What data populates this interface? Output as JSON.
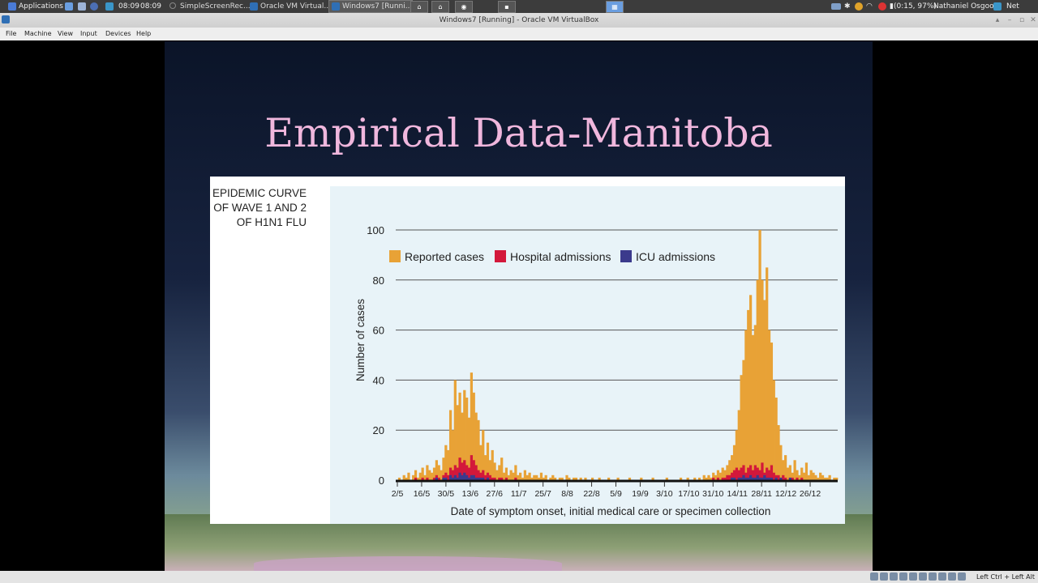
{
  "topbar": {
    "applications": "Applications",
    "clock": "08:09",
    "clock2": "08:09",
    "tasks": [
      "SimpleScreenRec...",
      "Oracle VM Virtual...",
      "Windows7 [Runni..."
    ],
    "battery": "(0:15, 97%)",
    "user": "Nathaniel Osgood",
    "network": "Net"
  },
  "window": {
    "title": "Windows7 [Running] - Oracle VM VirtualBox"
  },
  "menu": [
    "File",
    "Machine",
    "View",
    "Input",
    "Devices",
    "Help"
  ],
  "slide": {
    "title": "Empirical Data-Manitoba",
    "figure_title": [
      "EPIDEMIC CURVE",
      "OF WAVE 1 AND 2",
      "OF H1N1 FLU"
    ]
  },
  "chart_data": {
    "type": "bar",
    "ylabel": "Number of cases",
    "xlabel": "Date of symptom onset, initial medical care or specimen collection",
    "ylim": [
      0,
      100
    ],
    "yticks": [
      0,
      20,
      40,
      60,
      80,
      100
    ],
    "x_tick_labels": [
      "2/5",
      "16/5",
      "30/5",
      "13/6",
      "27/6",
      "11/7",
      "25/7",
      "8/8",
      "22/8",
      "5/9",
      "19/9",
      "3/10",
      "17/10",
      "31/10",
      "14/11",
      "28/11",
      "12/12",
      "26/12"
    ],
    "legend_placement": "top",
    "series": [
      {
        "name": "Reported cases",
        "color": "#e8a236"
      },
      {
        "name": "Hospital admissions",
        "color": "#d3183b"
      },
      {
        "name": "ICU admissions",
        "color": "#3b3a8c"
      }
    ],
    "reported_cases_daily": [
      0,
      1,
      0,
      2,
      1,
      3,
      0,
      2,
      4,
      1,
      3,
      5,
      2,
      6,
      4,
      3,
      5,
      8,
      6,
      4,
      9,
      14,
      12,
      28,
      20,
      40,
      30,
      35,
      27,
      36,
      33,
      25,
      43,
      35,
      27,
      24,
      14,
      20,
      10,
      15,
      8,
      12,
      7,
      4,
      6,
      9,
      3,
      5,
      2,
      4,
      3,
      6,
      2,
      3,
      1,
      4,
      2,
      3,
      1,
      2,
      2,
      1,
      3,
      1,
      2,
      0,
      1,
      2,
      1,
      0,
      1,
      1,
      0,
      2,
      1,
      0,
      1,
      1,
      0,
      1,
      0,
      1,
      0,
      0,
      1,
      0,
      0,
      1,
      0,
      0,
      0,
      1,
      0,
      0,
      0,
      1,
      0,
      0,
      0,
      0,
      1,
      0,
      0,
      0,
      0,
      1,
      0,
      0,
      0,
      0,
      1,
      0,
      0,
      0,
      0,
      0,
      1,
      0,
      0,
      0,
      0,
      0,
      1,
      0,
      0,
      1,
      0,
      0,
      1,
      0,
      1,
      0,
      2,
      1,
      2,
      1,
      3,
      2,
      4,
      3,
      5,
      4,
      6,
      8,
      10,
      14,
      20,
      28,
      42,
      48,
      60,
      68,
      74,
      58,
      62,
      80,
      100,
      80,
      72,
      85,
      60,
      55,
      40,
      33,
      22,
      14,
      8,
      10,
      5,
      6,
      3,
      8,
      4,
      2,
      5,
      3,
      7,
      2,
      4,
      3,
      2,
      1,
      3,
      2,
      1,
      1,
      2,
      0,
      1,
      1
    ],
    "hospital_admissions_daily": [
      0,
      0,
      0,
      0,
      0,
      0,
      0,
      0,
      1,
      0,
      0,
      1,
      0,
      1,
      0,
      0,
      1,
      2,
      1,
      0,
      2,
      3,
      2,
      5,
      4,
      6,
      5,
      9,
      7,
      8,
      6,
      5,
      10,
      8,
      6,
      4,
      3,
      4,
      2,
      3,
      2,
      1,
      1,
      0,
      1,
      1,
      0,
      1,
      0,
      0,
      0,
      1,
      0,
      0,
      0,
      0,
      0,
      0,
      0,
      0,
      0,
      0,
      0,
      0,
      0,
      0,
      0,
      0,
      0,
      0,
      0,
      0,
      0,
      0,
      0,
      0,
      0,
      0,
      0,
      0,
      0,
      0,
      0,
      0,
      0,
      0,
      0,
      0,
      0,
      0,
      0,
      0,
      0,
      0,
      0,
      0,
      0,
      0,
      0,
      0,
      0,
      0,
      0,
      0,
      0,
      0,
      0,
      0,
      0,
      0,
      0,
      0,
      0,
      0,
      0,
      0,
      0,
      0,
      0,
      0,
      0,
      0,
      0,
      0,
      0,
      0,
      0,
      0,
      0,
      0,
      0,
      0,
      0,
      0,
      0,
      0,
      1,
      0,
      1,
      0,
      1,
      1,
      2,
      2,
      3,
      4,
      5,
      4,
      5,
      6,
      3,
      5,
      6,
      4,
      6,
      5,
      4,
      7,
      3,
      5,
      4,
      6,
      3,
      2,
      2,
      1,
      2,
      1,
      0,
      1,
      1,
      0,
      1,
      0,
      1,
      0,
      0,
      0,
      0,
      0,
      0,
      0,
      0,
      0,
      0,
      0,
      0,
      0
    ],
    "icu_admissions_daily": [
      0,
      0,
      0,
      0,
      0,
      0,
      0,
      0,
      0,
      0,
      0,
      0,
      0,
      0,
      0,
      0,
      0,
      1,
      0,
      0,
      1,
      1,
      0,
      2,
      1,
      2,
      1,
      3,
      2,
      3,
      2,
      1,
      2,
      2,
      1,
      1,
      1,
      1,
      0,
      1,
      0,
      0,
      0,
      0,
      0,
      0,
      0,
      0,
      0,
      0,
      0,
      0,
      0,
      0,
      0,
      0,
      0,
      0,
      0,
      0,
      0,
      0,
      0,
      0,
      0,
      0,
      0,
      0,
      0,
      0,
      0,
      0,
      0,
      0,
      0,
      0,
      0,
      0,
      0,
      0,
      0,
      0,
      0,
      0,
      0,
      0,
      0,
      0,
      0,
      0,
      0,
      0,
      0,
      0,
      0,
      0,
      0,
      0,
      0,
      0,
      0,
      0,
      0,
      0,
      0,
      0,
      0,
      0,
      0,
      0,
      0,
      0,
      0,
      0,
      0,
      0,
      0,
      0,
      0,
      0,
      0,
      0,
      0,
      0,
      0,
      0,
      0,
      0,
      0,
      0,
      0,
      0,
      0,
      0,
      0,
      0,
      0,
      0,
      0,
      0,
      0,
      0,
      0,
      0,
      1,
      1,
      0,
      1,
      1,
      2,
      1,
      1,
      2,
      1,
      1,
      2,
      1,
      1,
      2,
      1,
      1,
      1,
      0,
      1,
      0,
      1,
      0,
      0,
      0,
      1,
      0,
      0,
      0,
      0,
      0,
      0,
      0,
      0,
      0,
      0,
      0,
      0,
      0,
      0,
      0,
      0,
      0,
      0,
      0,
      0,
      0,
      0
    ]
  },
  "statusbar": {
    "hostkey": "Left Ctrl + Left Alt"
  }
}
